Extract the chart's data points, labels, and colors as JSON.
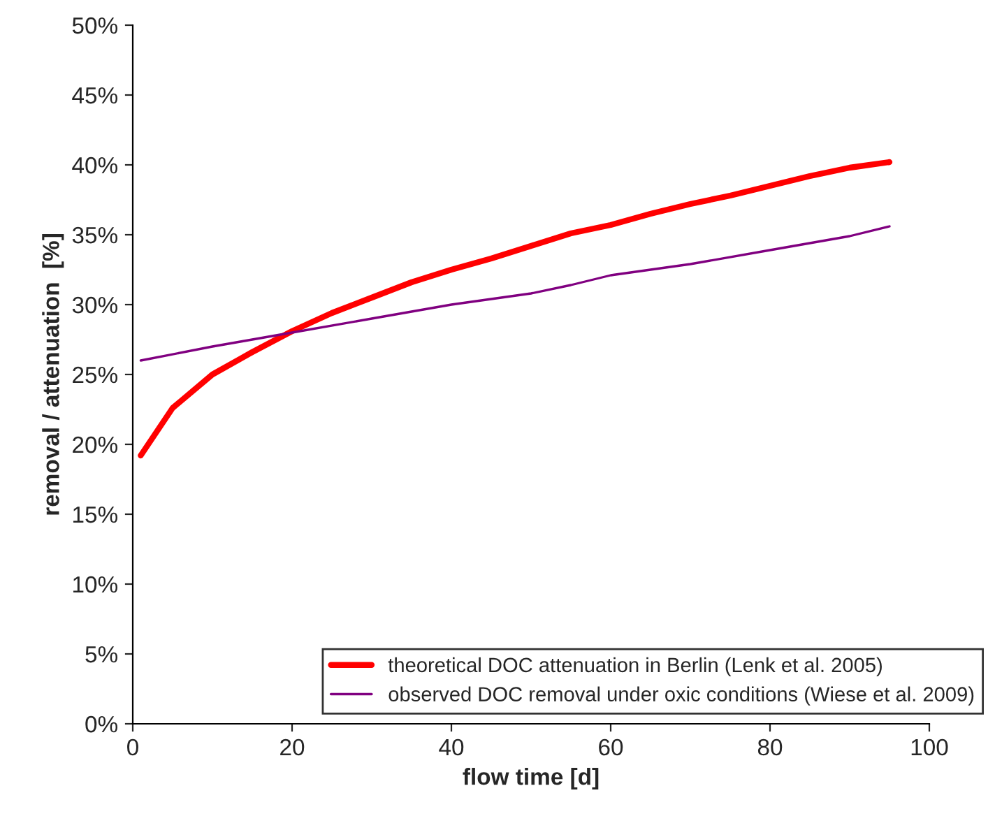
{
  "chart_data": {
    "type": "line",
    "xlabel": "flow time [d]",
    "ylabel": "removal / attenuation  [%]",
    "xlim": [
      0,
      100
    ],
    "xticks": [
      0,
      20,
      40,
      60,
      80,
      100
    ],
    "ylim": [
      0,
      50
    ],
    "yticks": [
      {
        "value": 0,
        "label": "0%"
      },
      {
        "value": 5,
        "label": "5%"
      },
      {
        "value": 10,
        "label": "10%"
      },
      {
        "value": 15,
        "label": "15%"
      },
      {
        "value": 20,
        "label": "20%"
      },
      {
        "value": 25,
        "label": "25%"
      },
      {
        "value": 30,
        "label": "30%"
      },
      {
        "value": 35,
        "label": "35%"
      },
      {
        "value": 40,
        "label": "40%"
      },
      {
        "value": 45,
        "label": "45%"
      },
      {
        "value": 50,
        "label": "50%"
      }
    ],
    "grid": false,
    "legend": "bottom right",
    "marker": "none",
    "line_style": "solid",
    "series": [
      {
        "name": "theoretical DOC attenuation in Berlin (Lenk et al. 2005)",
        "color": "#ff0000",
        "x": [
          1,
          5,
          10,
          15,
          20,
          25,
          30,
          35,
          40,
          45,
          50,
          55,
          60,
          65,
          70,
          75,
          80,
          85,
          90,
          95
        ],
        "values": [
          19.2,
          22.6,
          25.0,
          26.6,
          28.1,
          29.4,
          30.5,
          31.6,
          32.5,
          33.3,
          34.2,
          35.1,
          35.7,
          36.5,
          37.2,
          37.8,
          38.5,
          39.2,
          39.8,
          40.2
        ]
      },
      {
        "name": "observed DOC removal under oxic conditions (Wiese et al. 2009)",
        "color": "#800080",
        "x": [
          1,
          10,
          20,
          30,
          40,
          50,
          55,
          60,
          70,
          80,
          90,
          95
        ],
        "values": [
          26.0,
          27.0,
          28.0,
          29.0,
          30.0,
          30.8,
          31.4,
          32.1,
          32.9,
          33.9,
          34.9,
          35.6
        ]
      }
    ]
  }
}
